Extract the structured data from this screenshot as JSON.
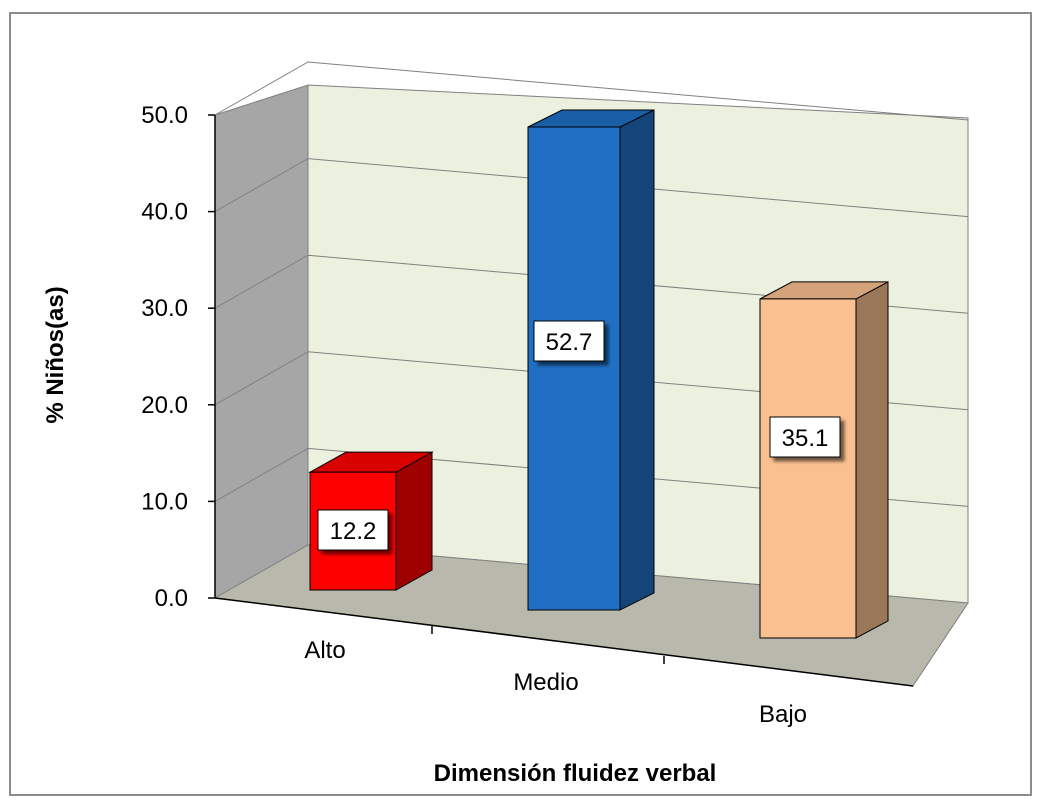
{
  "chart_data": {
    "type": "bar",
    "style": "3d-column",
    "categories": [
      "Alto",
      "Medio",
      "Bajo"
    ],
    "values": [
      12.2,
      52.7,
      35.1
    ],
    "value_labels": [
      "12.2",
      "52.7",
      "35.1"
    ],
    "title": "",
    "xlabel": "Dimensión fluidez verbal",
    "ylabel": "% Niños(as)",
    "ylim": [
      0,
      50
    ],
    "yticks": [
      "0.0",
      "10.0",
      "20.0",
      "30.0",
      "40.0",
      "50.0"
    ],
    "grid": true,
    "legend": "none",
    "colors": {
      "Alto": "#ff0000",
      "Medio": "#1f6fc4",
      "Bajo": "#fac090",
      "back_wall": "#ebf1de",
      "side_wall": "#a6a6a6",
      "floor": "#b8b8ac"
    }
  }
}
